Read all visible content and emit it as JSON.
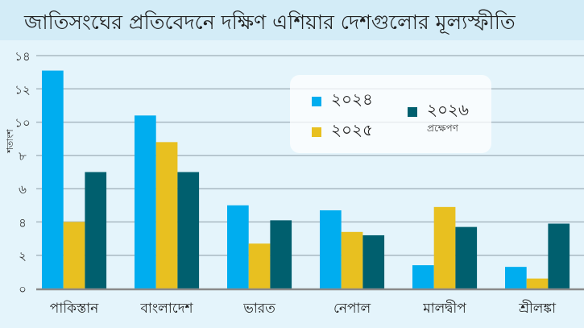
{
  "chart_data": {
    "type": "bar",
    "title": "জাতিসংঘের প্রতিবেদনে দক্ষিণ এশিয়ার দেশগুলোর মূল্যস্ফীতি",
    "ylabel": "শতাংশ",
    "xlabel": "",
    "ylim": [
      0,
      14
    ],
    "yticks": [
      0,
      2,
      4,
      6,
      8,
      10,
      12,
      14
    ],
    "ytick_labels": [
      "০",
      "২",
      "৪",
      "৬",
      "৮",
      "১০",
      "১২",
      "১৪"
    ],
    "grid": true,
    "legend_placement": "top-center",
    "categories": [
      "পাকিস্তান",
      "বাংলাদেশ",
      "ভারত",
      "নেপাল",
      "মালদ্বীপ",
      "শ্রীলঙ্কা"
    ],
    "series": [
      {
        "name": "২০২৪",
        "color": "#00adef",
        "values": [
          13.1,
          10.4,
          5.0,
          4.7,
          1.4,
          1.3
        ]
      },
      {
        "name": "২০২৫",
        "color": "#e8c020",
        "values": [
          4.0,
          8.8,
          2.7,
          3.4,
          4.9,
          0.6
        ]
      },
      {
        "name": "২০২৬",
        "sub": "প্রক্ষেপণ",
        "color": "#005f6e",
        "values": [
          7.0,
          7.0,
          4.1,
          3.2,
          3.7,
          3.9
        ]
      }
    ]
  }
}
